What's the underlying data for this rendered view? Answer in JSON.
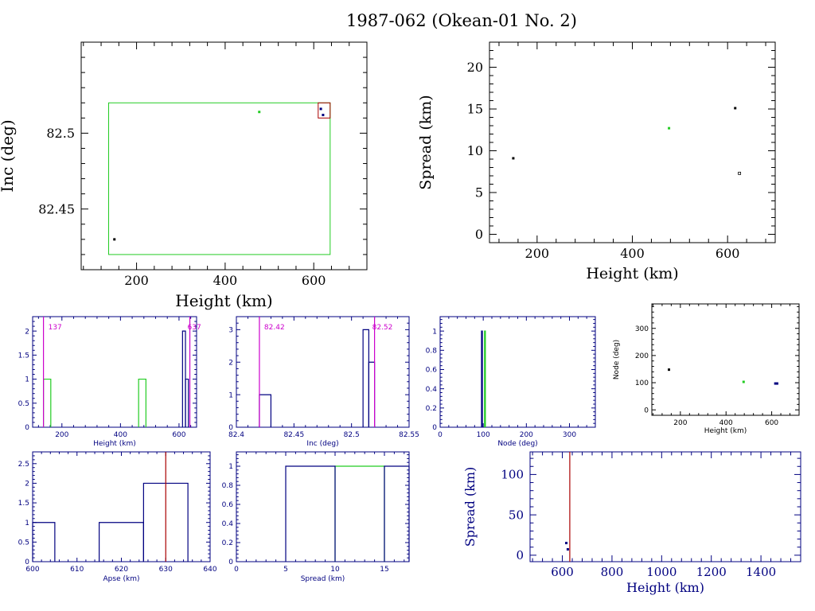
{
  "title": "1987-062 (Okean-01 No. 2)",
  "colors": {
    "black": "#000000",
    "green": "#22cc22",
    "blue": "#000080",
    "red": "#aa0000",
    "magenta": "#cc00cc"
  },
  "chart_data": [
    {
      "id": "inc_vs_height",
      "type": "scatter",
      "title": "",
      "xlabel": "Height (km)",
      "ylabel": "Inc (deg)",
      "xlim": [
        75,
        720
      ],
      "ylim": [
        82.41,
        82.56
      ],
      "xticks": [
        200,
        400,
        600
      ],
      "yticks": [
        82.45,
        82.5
      ],
      "xtick_labels": [
        "200",
        "400",
        "600"
      ],
      "ytick_labels": [
        "82.45",
        "82.5"
      ],
      "series": [
        {
          "name": "black",
          "color": "#000000",
          "points": [
            [
              150,
              82.43
            ]
          ]
        },
        {
          "name": "green",
          "color": "#22cc22",
          "points": [
            [
              477,
              82.514
            ]
          ]
        },
        {
          "name": "blue",
          "color": "#000080",
          "points": [
            [
              616,
              82.516
            ],
            [
              621,
              82.512
            ]
          ]
        }
      ],
      "boxes": [
        {
          "name": "green-box",
          "color": "#22cc22",
          "x": [
            137,
            637
          ],
          "y": [
            82.42,
            82.52
          ]
        },
        {
          "name": "red-box",
          "color": "#aa0000",
          "x": [
            610,
            637
          ],
          "y": [
            82.51,
            82.52
          ]
        }
      ]
    },
    {
      "id": "spread_vs_height",
      "type": "scatter",
      "title": "",
      "xlabel": "Height (km)",
      "ylabel": "Spread (km)",
      "xlim": [
        100,
        700
      ],
      "ylim": [
        -1,
        23
      ],
      "xticks": [
        200,
        400,
        600
      ],
      "yticks": [
        0,
        5,
        10,
        15,
        20
      ],
      "xtick_labels": [
        "200",
        "400",
        "600"
      ],
      "ytick_labels": [
        "0",
        "5",
        "10",
        "15",
        "20"
      ],
      "series": [
        {
          "name": "black",
          "color": "#000000",
          "points": [
            [
              150,
              9.1
            ],
            [
              616,
              15.1
            ]
          ]
        },
        {
          "name": "green",
          "color": "#22cc22",
          "points": [
            [
              477,
              12.7
            ]
          ]
        },
        {
          "name": "open",
          "color": "#000000",
          "points": [
            [
              625,
              7.3
            ]
          ]
        }
      ]
    },
    {
      "id": "height_hist",
      "type": "bar",
      "title": "",
      "xlabel": "Height (km)",
      "ylabel": "",
      "xlim": [
        100,
        660
      ],
      "ylim": [
        0,
        2.3
      ],
      "xticks": [
        200,
        400,
        600
      ],
      "yticks": [
        0,
        0.5,
        1,
        1.5,
        2
      ],
      "xtick_labels": [
        "200",
        "400",
        "600"
      ],
      "ytick_labels": [
        "0",
        "0.5",
        "1",
        "1.5",
        "2"
      ],
      "series": [
        {
          "name": "green",
          "color": "#22cc22",
          "bins": [
            [
              137,
              162,
              1
            ],
            [
              462,
              487,
              1
            ]
          ]
        },
        {
          "name": "blue",
          "color": "#000080",
          "bins": [
            [
              612,
              622,
              2
            ],
            [
              622,
              632,
              1
            ]
          ]
        }
      ],
      "vlines": [
        {
          "name": "min",
          "color": "#cc00cc",
          "x": 137,
          "label": "137"
        },
        {
          "name": "max",
          "color": "#cc00cc",
          "x": 637,
          "label": "637"
        }
      ]
    },
    {
      "id": "inc_hist",
      "type": "bar",
      "title": "",
      "xlabel": "Inc (deg)",
      "ylabel": "",
      "xlim": [
        82.4,
        82.55
      ],
      "ylim": [
        0,
        3.4
      ],
      "xticks": [
        82.4,
        82.45,
        82.5,
        82.55
      ],
      "yticks": [
        0,
        1,
        2,
        3
      ],
      "xtick_labels": [
        "82.4",
        "82.45",
        "82.5",
        "82.55"
      ],
      "ytick_labels": [
        "0",
        "1",
        "2",
        "3"
      ],
      "series": [
        {
          "name": "blue",
          "color": "#000080",
          "bins": [
            [
              82.42,
              82.43,
              1
            ],
            [
              82.51,
              82.515,
              3
            ],
            [
              82.515,
              82.52,
              2
            ]
          ]
        }
      ],
      "vlines": [
        {
          "name": "min",
          "color": "#cc00cc",
          "x": 82.42,
          "label": "82.42"
        },
        {
          "name": "max",
          "color": "#cc00cc",
          "x": 82.52,
          "label": "82.52"
        }
      ]
    },
    {
      "id": "node_hist",
      "type": "bar",
      "title": "",
      "xlabel": "Node (deg)",
      "ylabel": "",
      "xlim": [
        0,
        360
      ],
      "ylim": [
        0,
        1.15
      ],
      "xticks": [
        0,
        100,
        200,
        300
      ],
      "yticks": [
        0,
        0.2,
        0.4,
        0.6,
        0.8,
        1
      ],
      "xtick_labels": [
        "0",
        "100",
        "200",
        "300"
      ],
      "ytick_labels": [
        "0",
        "0.2",
        "0.4",
        "0.6",
        "0.8",
        "1"
      ],
      "series": [
        {
          "name": "blue",
          "color": "#000080",
          "bins": [
            [
              96,
              98,
              1
            ]
          ]
        },
        {
          "name": "green",
          "color": "#22cc22",
          "bins": [
            [
              103,
              105,
              1
            ]
          ]
        }
      ]
    },
    {
      "id": "node_vs_height",
      "type": "scatter",
      "title": "",
      "xlabel": "Height (km)",
      "ylabel": "Node (deg)",
      "xlim": [
        75,
        720
      ],
      "ylim": [
        -20,
        390
      ],
      "xticks": [
        200,
        400,
        600
      ],
      "yticks": [
        0,
        100,
        200,
        300
      ],
      "xtick_labels": [
        "200",
        "400",
        "600"
      ],
      "ytick_labels": [
        "0",
        "100",
        "200",
        "300"
      ],
      "series": [
        {
          "name": "black",
          "color": "#000000",
          "points": [
            [
              150,
              148
            ]
          ]
        },
        {
          "name": "green",
          "color": "#22cc22",
          "points": [
            [
              477,
              103
            ]
          ]
        },
        {
          "name": "blue",
          "color": "#000080",
          "points": [
            [
              616,
              97
            ],
            [
              624,
              97
            ]
          ]
        }
      ]
    },
    {
      "id": "apse_hist",
      "type": "bar",
      "title": "",
      "xlabel": "Apse (km)",
      "ylabel": "",
      "xlim": [
        600,
        640
      ],
      "ylim": [
        0,
        2.8
      ],
      "xticks": [
        600,
        610,
        620,
        630,
        640
      ],
      "yticks": [
        0,
        0.5,
        1,
        1.5,
        2,
        2.5
      ],
      "xtick_labels": [
        "600",
        "610",
        "620",
        "630",
        "640"
      ],
      "ytick_labels": [
        "0",
        "0.5",
        "1",
        "1.5",
        "2",
        "2.5"
      ],
      "series": [
        {
          "name": "blue",
          "color": "#000080",
          "bins": [
            [
              600,
              605,
              1
            ],
            [
              615,
              625,
              1
            ],
            [
              625,
              635,
              2
            ]
          ]
        }
      ],
      "vlines": [
        {
          "name": "apse-line",
          "color": "#aa0000",
          "x": 630,
          "label": ""
        }
      ]
    },
    {
      "id": "spread_hist",
      "type": "bar",
      "title": "",
      "xlabel": "Spread (km)",
      "ylabel": "",
      "xlim": [
        0,
        17.5
      ],
      "ylim": [
        0,
        1.15
      ],
      "xticks": [
        0,
        5,
        10,
        15
      ],
      "yticks": [
        0,
        0.2,
        0.4,
        0.6,
        0.8,
        1
      ],
      "xtick_labels": [
        "0",
        "5",
        "10",
        "15"
      ],
      "ytick_labels": [
        "0",
        "0.2",
        "0.4",
        "0.6",
        "0.8",
        "1"
      ],
      "series": [
        {
          "name": "green",
          "color": "#22cc22",
          "bins": [
            [
              10,
              15,
              1
            ]
          ]
        },
        {
          "name": "blue",
          "color": "#000080",
          "bins": [
            [
              5,
              10,
              1
            ],
            [
              15,
              17.5,
              1
            ]
          ]
        }
      ]
    },
    {
      "id": "spread_vs_height_wide",
      "type": "scatter",
      "title": "",
      "xlabel": "Height (km)",
      "ylabel": "Spread (km)",
      "xlim": [
        470,
        1560
      ],
      "ylim": [
        -8,
        128
      ],
      "xticks": [
        600,
        800,
        1000,
        1200,
        1400
      ],
      "yticks": [
        0,
        50,
        100
      ],
      "xtick_labels": [
        "600",
        "800",
        "1000",
        "1200",
        "1400"
      ],
      "ytick_labels": [
        "0",
        "50",
        "100"
      ],
      "series": [
        {
          "name": "blue",
          "color": "#000080",
          "points": [
            [
              616,
              15.1
            ],
            [
              622,
              7.3
            ]
          ]
        }
      ],
      "vlines": [
        {
          "name": "apse-line",
          "color": "#aa0000",
          "x": 630,
          "label": ""
        }
      ]
    }
  ]
}
